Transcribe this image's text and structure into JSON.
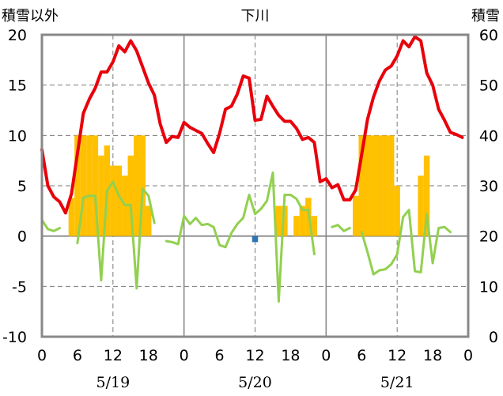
{
  "chart_data": {
    "type": "line",
    "title": "下川",
    "left_axis_label": "積雪以外",
    "right_axis_label": "積雪",
    "left_ylim": [
      -10,
      20
    ],
    "left_ticks": [
      "-10",
      "-5",
      "0",
      "5",
      "10",
      "15",
      "20"
    ],
    "right_ylim": [
      0,
      60
    ],
    "right_ticks": [
      "0",
      "10",
      "20",
      "30",
      "40",
      "50",
      "60"
    ],
    "x_range_hours": [
      0,
      72
    ],
    "x_tick_labels": [
      "0",
      "6",
      "12",
      "18",
      "0",
      "6",
      "12",
      "18",
      "0",
      "6",
      "12",
      "18",
      "0"
    ],
    "date_labels": [
      "5/19",
      "5/20",
      "5/21"
    ],
    "grid": "dashed vertical at 12h, solid vertical at day boundaries, dashed horizontal at every tick",
    "colors": {
      "red": "#e8000b",
      "green": "#92d050",
      "orange": "#ffc000",
      "blue": "#2e75b6"
    },
    "series": [
      {
        "axis": "left",
        "color": "#e8000b",
        "points": [
          [
            0,
            8.6
          ],
          [
            1,
            5.0
          ],
          [
            2,
            3.9
          ],
          [
            3,
            3.4
          ],
          [
            4,
            2.3
          ],
          [
            5,
            4.2
          ],
          [
            6,
            8.2
          ],
          [
            7,
            12.2
          ],
          [
            8,
            13.6
          ],
          [
            9,
            14.7
          ],
          [
            10,
            16.3
          ],
          [
            11,
            16.3
          ],
          [
            12,
            17.3
          ],
          [
            13,
            18.9
          ],
          [
            14,
            18.3
          ],
          [
            15,
            19.4
          ],
          [
            16,
            18.4
          ],
          [
            17,
            16.8
          ],
          [
            18,
            15.2
          ],
          [
            19,
            14.0
          ],
          [
            20,
            11.1
          ],
          [
            21,
            9.3
          ],
          [
            22,
            9.9
          ],
          [
            23,
            9.8
          ],
          [
            24,
            11.3
          ],
          [
            25,
            10.8
          ],
          [
            26,
            10.5
          ],
          [
            27,
            10.2
          ],
          [
            28,
            9.2
          ],
          [
            29,
            8.3
          ],
          [
            30,
            10.2
          ],
          [
            31,
            12.6
          ],
          [
            32,
            12.9
          ],
          [
            33,
            14.1
          ],
          [
            34,
            15.9
          ],
          [
            35,
            15.7
          ],
          [
            36,
            11.5
          ],
          [
            37,
            11.6
          ],
          [
            38,
            13.9
          ],
          [
            39,
            12.9
          ],
          [
            40,
            12.0
          ],
          [
            41,
            11.4
          ],
          [
            42,
            11.4
          ],
          [
            43,
            10.7
          ],
          [
            44,
            9.6
          ],
          [
            45,
            9.8
          ],
          [
            46,
            9.3
          ],
          [
            47,
            5.4
          ],
          [
            48,
            5.7
          ],
          [
            49,
            4.8
          ],
          [
            50,
            5.1
          ],
          [
            51,
            3.6
          ],
          [
            52,
            3.6
          ],
          [
            53,
            4.6
          ],
          [
            54,
            8.1
          ],
          [
            55,
            11.6
          ],
          [
            56,
            13.8
          ],
          [
            57,
            15.4
          ],
          [
            58,
            16.5
          ],
          [
            59,
            16.9
          ],
          [
            60,
            17.9
          ],
          [
            61,
            19.4
          ],
          [
            62,
            18.8
          ],
          [
            63,
            19.8
          ],
          [
            64,
            19.4
          ],
          [
            65,
            16.2
          ],
          [
            66,
            15.0
          ],
          [
            67,
            12.6
          ],
          [
            68,
            11.5
          ],
          [
            69,
            10.3
          ],
          [
            70,
            10.1
          ],
          [
            71,
            9.8
          ]
        ]
      },
      {
        "axis": "left",
        "color": "#92d050",
        "segments": [
          [
            [
              0,
              1.6
            ],
            [
              1,
              0.7
            ],
            [
              2,
              0.5
            ],
            [
              3,
              0.8
            ]
          ],
          [
            [
              6,
              -0.7
            ],
            [
              7,
              3.8
            ],
            [
              8,
              4.0
            ],
            [
              9,
              4.0
            ],
            [
              10,
              -4.4
            ],
            [
              11,
              4.5
            ],
            [
              12,
              5.4
            ],
            [
              13,
              4.0
            ],
            [
              14,
              3.1
            ],
            [
              15,
              3.1
            ],
            [
              16,
              -5.2
            ],
            [
              17,
              4.7
            ],
            [
              18,
              4.0
            ],
            [
              19,
              1.3
            ]
          ],
          [
            [
              21,
              -0.5
            ],
            [
              22,
              -0.6
            ],
            [
              23,
              -0.8
            ],
            [
              24,
              2.0
            ],
            [
              25,
              1.2
            ],
            [
              26,
              1.8
            ],
            [
              27,
              1.1
            ],
            [
              28,
              1.2
            ],
            [
              29,
              0.9
            ],
            [
              30,
              -0.9
            ],
            [
              31,
              -1.1
            ],
            [
              32,
              0.3
            ],
            [
              33,
              1.2
            ],
            [
              34,
              1.8
            ],
            [
              35,
              4.1
            ],
            [
              36,
              2.2
            ],
            [
              37,
              2.7
            ],
            [
              38,
              3.5
            ],
            [
              39,
              6.3
            ],
            [
              40,
              -6.5
            ],
            [
              41,
              4.1
            ],
            [
              42,
              4.1
            ],
            [
              43,
              3.7
            ],
            [
              44,
              2.6
            ],
            [
              45,
              2.6
            ],
            [
              46,
              -1.8
            ]
          ],
          [
            [
              49,
              0.9
            ],
            [
              50,
              1.1
            ],
            [
              51,
              0.5
            ],
            [
              52,
              0.8
            ]
          ],
          [
            [
              54,
              0.4
            ],
            [
              55,
              -1.6
            ],
            [
              56,
              -3.8
            ],
            [
              57,
              -3.4
            ],
            [
              58,
              -3.3
            ],
            [
              59,
              -2.8
            ],
            [
              60,
              -1.8
            ],
            [
              61,
              1.9
            ],
            [
              62,
              2.6
            ],
            [
              63,
              -3.5
            ],
            [
              64,
              -3.6
            ],
            [
              65,
              2.2
            ],
            [
              66,
              -2.7
            ],
            [
              67,
              0.8
            ],
            [
              68,
              0.9
            ],
            [
              69,
              0.4
            ]
          ]
        ]
      }
    ],
    "bars": [
      {
        "color": "#ffc000",
        "axis": "left",
        "values": [
          [
            5,
            3.8
          ],
          [
            6,
            10.0
          ],
          [
            7,
            10.0
          ],
          [
            8,
            10.0
          ],
          [
            9,
            10.0
          ],
          [
            10,
            8.0
          ],
          [
            11,
            9.0
          ],
          [
            12,
            7.0
          ],
          [
            13,
            7.0
          ],
          [
            14,
            6.0
          ],
          [
            15,
            8.0
          ],
          [
            16,
            10.0
          ],
          [
            17,
            10.0
          ],
          [
            18,
            3.0
          ],
          [
            40,
            3.0
          ],
          [
            41,
            3.0
          ],
          [
            43,
            2.0
          ],
          [
            44,
            3.0
          ],
          [
            45,
            3.8
          ],
          [
            46,
            2.0
          ],
          [
            53,
            4.0
          ],
          [
            54,
            10.0
          ],
          [
            55,
            10.0
          ],
          [
            56,
            10.0
          ],
          [
            57,
            10.0
          ],
          [
            58,
            10.0
          ],
          [
            59,
            10.0
          ],
          [
            60,
            5.0
          ],
          [
            64,
            6.0
          ],
          [
            65,
            8.0
          ]
        ]
      },
      {
        "color": "#2e75b6",
        "axis": "left",
        "values": [
          [
            36,
            -0.6
          ]
        ]
      }
    ]
  }
}
